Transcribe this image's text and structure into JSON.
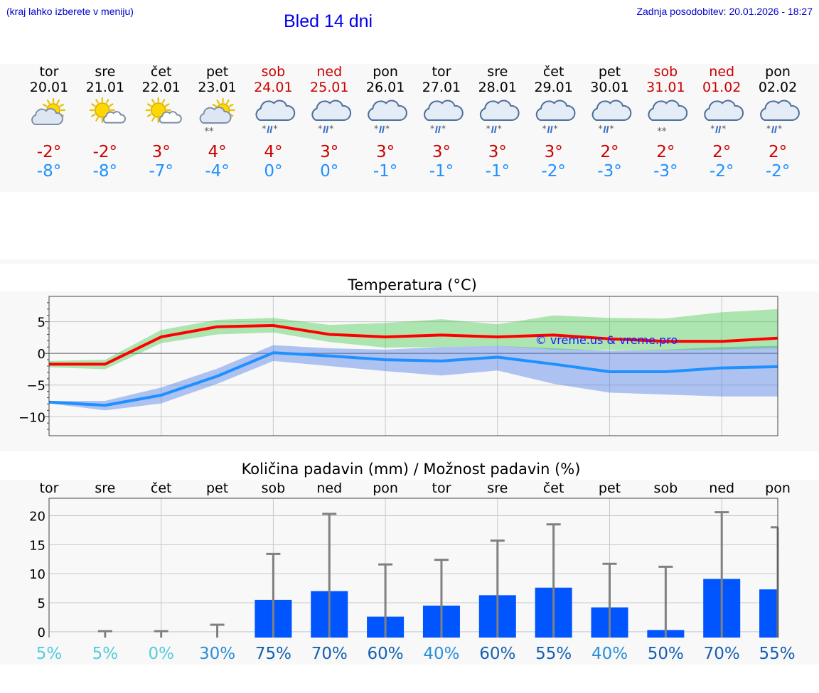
{
  "header": {
    "hint": "(kraj lahko izberete v meniju)",
    "title": "Bled 14 dni",
    "updated": "Zadnja posodobitev: 20.01.2026 - 18:27"
  },
  "colors": {
    "weekday": "#000000",
    "weekend": "#cc0000",
    "tmax": "#cc0000",
    "tmin": "#1e90ff",
    "precip_bar": "#0055ff",
    "whisker": "#808080"
  },
  "forecast": [
    {
      "dow": "tor",
      "date": "20.01",
      "weekend": false,
      "icon": "partly-cloudy-icon",
      "tmax": "-2°",
      "tmin": "-8°"
    },
    {
      "dow": "sre",
      "date": "21.01",
      "weekend": false,
      "icon": "sun-small-cloud-icon",
      "tmax": "-2°",
      "tmin": "-8°"
    },
    {
      "dow": "čet",
      "date": "22.01",
      "weekend": false,
      "icon": "sun-small-cloud-icon",
      "tmax": "3°",
      "tmin": "-7°"
    },
    {
      "dow": "pet",
      "date": "23.01",
      "weekend": false,
      "icon": "partly-cloudy-snow-icon",
      "tmax": "4°",
      "tmin": "-4°"
    },
    {
      "dow": "sob",
      "date": "24.01",
      "weekend": true,
      "icon": "cloud-sleet-icon",
      "tmax": "4°",
      "tmin": "0°"
    },
    {
      "dow": "ned",
      "date": "25.01",
      "weekend": true,
      "icon": "cloud-sleet-icon",
      "tmax": "3°",
      "tmin": "0°"
    },
    {
      "dow": "pon",
      "date": "26.01",
      "weekend": false,
      "icon": "cloud-sleet-icon",
      "tmax": "3°",
      "tmin": "-1°"
    },
    {
      "dow": "tor",
      "date": "27.01",
      "weekend": false,
      "icon": "cloud-sleet-icon",
      "tmax": "3°",
      "tmin": "-1°"
    },
    {
      "dow": "sre",
      "date": "28.01",
      "weekend": false,
      "icon": "cloud-sleet-icon",
      "tmax": "3°",
      "tmin": "-1°"
    },
    {
      "dow": "čet",
      "date": "29.01",
      "weekend": false,
      "icon": "cloud-sleet-icon",
      "tmax": "3°",
      "tmin": "-2°"
    },
    {
      "dow": "pet",
      "date": "30.01",
      "weekend": false,
      "icon": "cloud-sleet-icon",
      "tmax": "2°",
      "tmin": "-3°"
    },
    {
      "dow": "sob",
      "date": "31.01",
      "weekend": true,
      "icon": "cloud-snow-icon",
      "tmax": "2°",
      "tmin": "-3°"
    },
    {
      "dow": "ned",
      "date": "01.02",
      "weekend": true,
      "icon": "cloud-sleet-icon",
      "tmax": "2°",
      "tmin": "-2°"
    },
    {
      "dow": "pon",
      "date": "02.02",
      "weekend": false,
      "icon": "cloud-sleet-icon",
      "tmax": "2°",
      "tmin": "-2°"
    }
  ],
  "chart_data": [
    {
      "type": "line",
      "title": "Temperatura (°C)",
      "watermark": "© vreme.us & vreme.pro",
      "ylim": [
        -13,
        9
      ],
      "yticks": [
        5,
        0,
        -5,
        -10
      ],
      "ytick_labels": [
        "5",
        "0",
        "−5",
        "−10"
      ],
      "x": [
        0,
        1,
        2,
        3,
        4,
        5,
        6,
        7,
        8,
        9,
        10,
        11,
        12,
        13
      ],
      "series": [
        {
          "name": "max",
          "values": [
            -1.7,
            -1.7,
            2.6,
            4.2,
            4.4,
            3.0,
            2.6,
            2.9,
            2.6,
            2.9,
            2.3,
            1.9,
            1.9,
            2.4
          ],
          "band_low": [
            -2.2,
            -2.5,
            1.6,
            3.0,
            3.3,
            1.8,
            0.9,
            1.0,
            1.2,
            0.6,
            0.5,
            0.5,
            0.6,
            0.8
          ],
          "band_high": [
            -1.2,
            -1.0,
            3.7,
            5.3,
            5.6,
            4.5,
            4.8,
            5.4,
            4.6,
            6.0,
            5.6,
            5.5,
            6.5,
            7.0
          ]
        },
        {
          "name": "min",
          "values": [
            -7.7,
            -8.2,
            -6.6,
            -3.6,
            0.1,
            -0.4,
            -1.0,
            -1.2,
            -0.6,
            -1.7,
            -2.9,
            -2.9,
            -2.3,
            -2.1
          ],
          "band_low": [
            -7.9,
            -9.0,
            -7.9,
            -4.8,
            -1.2,
            -2.0,
            -2.8,
            -3.5,
            -2.7,
            -4.8,
            -6.2,
            -6.5,
            -6.8,
            -6.8
          ],
          "band_high": [
            -7.5,
            -7.5,
            -5.4,
            -2.4,
            1.3,
            0.8,
            0.6,
            1.0,
            1.2,
            0.8,
            0.4,
            0.6,
            1.0,
            1.2
          ]
        }
      ]
    },
    {
      "type": "bar",
      "title": "Količina padavin (mm) / Možnost padavin (%)",
      "categories": [
        "tor",
        "sre",
        "čet",
        "pet",
        "sob",
        "ned",
        "pon",
        "tor",
        "sre",
        "čet",
        "pet",
        "sob",
        "ned",
        "pon"
      ],
      "ylim": [
        -1,
        23
      ],
      "yticks": [
        20,
        15,
        10,
        5,
        0
      ],
      "values": [
        0,
        0,
        0,
        0,
        5.5,
        7.0,
        2.6,
        4.5,
        6.3,
        7.6,
        4.2,
        0.3,
        9.1,
        7.3
      ],
      "error_high": [
        0,
        0.1,
        0.1,
        1.2,
        13.4,
        20.3,
        11.6,
        12.4,
        15.7,
        18.5,
        11.7,
        11.2,
        20.6,
        18.0
      ],
      "probabilities": [
        "5%",
        "5%",
        "0%",
        "30%",
        "75%",
        "70%",
        "60%",
        "40%",
        "60%",
        "55%",
        "40%",
        "50%",
        "70%",
        "55%"
      ],
      "probability_values": [
        5,
        5,
        0,
        30,
        75,
        70,
        60,
        40,
        60,
        55,
        40,
        50,
        70,
        55
      ]
    }
  ]
}
